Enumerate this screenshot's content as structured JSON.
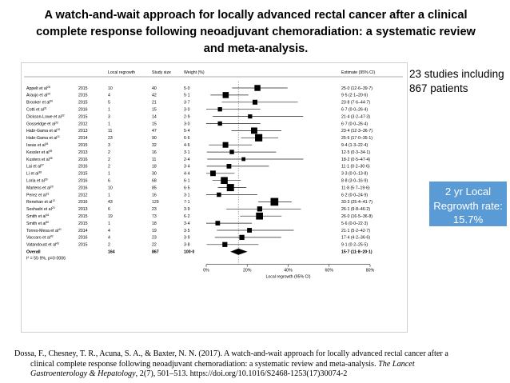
{
  "slide": {
    "title": "A watch-and-wait approach for locally advanced rectal cancer after a clinical complete response following neoadjuvant chemoradiation: a systematic review and meta-analysis.",
    "side_note": "23 studies including 867 patients",
    "stat_box": "2 yr Local Regrowth rate: 15.7%",
    "citation": {
      "line1": "Dossa, F., Chesney, T. R., Acuna, S. A., & Baxter, N. N. (2017). A watch-and-wait approach for locally advanced rectal cancer after a",
      "line2": "clinical complete response following neoadjuvant chemoradiation: a systematic review and meta-analysis.",
      "journal": "The Lancet",
      "line3_journal": "Gastroenterology & Hepatology",
      "line3_rest": ", 2(7), 501–513. https://doi.org/10.1016/S2468-1253(17)30074-2"
    }
  },
  "chart_data": {
    "type": "forest",
    "columns": [
      "Local regrowth",
      "Study size",
      "Weight (%)",
      "Estimate (95% CI)"
    ],
    "xlabel": "Local regrowth (95% CI)",
    "xticks": [
      "0%",
      "20%",
      "40%",
      "60%",
      "80%"
    ],
    "xlim": [
      0,
      80
    ],
    "heterogeneity": "I² = 55·9%, p=0·0006",
    "studies": [
      {
        "study": "Appelt et al",
        "ref": "28",
        "year": "2015",
        "regrowth": "10",
        "size": "40",
        "weight": "5·0",
        "est_text": "25·0 (12·6–39·7)",
        "est": 25.0,
        "lo": 12.6,
        "hi": 39.7
      },
      {
        "study": "Araujo et al",
        "ref": "29",
        "year": "2015",
        "regrowth": "4",
        "size": "42",
        "weight": "5·1",
        "est_text": "9·5 (2·1–20·6)",
        "est": 9.5,
        "lo": 2.1,
        "hi": 20.6
      },
      {
        "study": "Brooker et al",
        "ref": "30",
        "year": "2015",
        "regrowth": "5",
        "size": "21",
        "weight": "3·7",
        "est_text": "23·8 (7·6–44·7)",
        "est": 23.8,
        "lo": 7.6,
        "hi": 44.7
      },
      {
        "study": "Cotti et al",
        "ref": "31",
        "year": "2016",
        "regrowth": "1",
        "size": "15",
        "weight": "3·0",
        "est_text": "6·7 (0·0–26·4)",
        "est": 6.7,
        "lo": 0.0,
        "hi": 26.4
      },
      {
        "study": "Dickson-Lowe et al",
        "ref": "32",
        "year": "2015",
        "regrowth": "3",
        "size": "14",
        "weight": "2·9",
        "est_text": "21·4 (3·2–47·3)",
        "est": 21.4,
        "lo": 3.2,
        "hi": 47.3
      },
      {
        "study": "Gosseldge et al",
        "ref": "33",
        "year": "2012",
        "regrowth": "1",
        "size": "15",
        "weight": "3·0",
        "est_text": "6·7 (0·0–26·4)",
        "est": 6.7,
        "lo": 0.0,
        "hi": 26.4
      },
      {
        "study": "Habr-Gama et al",
        "ref": "10",
        "year": "2013",
        "regrowth": "11",
        "size": "47",
        "weight": "5·4",
        "est_text": "23·4 (12·3–36·7)",
        "est": 23.4,
        "lo": 12.3,
        "hi": 36.7
      },
      {
        "study": "Habr-Gama et al",
        "ref": "11",
        "year": "2014",
        "regrowth": "23",
        "size": "90",
        "weight": "6·6",
        "est_text": "25·6 (17·0–35·1)",
        "est": 25.6,
        "lo": 17.0,
        "hi": 35.1
      },
      {
        "study": "Iseas et al",
        "ref": "34",
        "year": "2015",
        "regrowth": "3",
        "size": "32",
        "weight": "4·6",
        "est_text": "9·4 (1·3–22·4)",
        "est": 9.4,
        "lo": 1.3,
        "hi": 22.4
      },
      {
        "study": "Kessler et al",
        "ref": "35",
        "year": "2013",
        "regrowth": "2",
        "size": "16",
        "weight": "3·1",
        "est_text": "12·5 (0·3–34·1)",
        "est": 12.5,
        "lo": 0.3,
        "hi": 34.1
      },
      {
        "study": "Kusters et al",
        "ref": "36",
        "year": "2016",
        "regrowth": "2",
        "size": "11",
        "weight": "2·4",
        "est_text": "18·2 (0·5–47·4)",
        "est": 18.2,
        "lo": 0.5,
        "hi": 47.4
      },
      {
        "study": "Lai et al",
        "ref": "37",
        "year": "2016",
        "regrowth": "2",
        "size": "18",
        "weight": "3·4",
        "est_text": "11·1 (0·2–30·6)",
        "est": 11.1,
        "lo": 0.2,
        "hi": 30.6
      },
      {
        "study": "Li et al",
        "ref": "38",
        "year": "2015",
        "regrowth": "1",
        "size": "30",
        "weight": "4·4",
        "est_text": "3·3 (0·0–13·8)",
        "est": 3.3,
        "lo": 0.0,
        "hi": 13.8
      },
      {
        "study": "Loria et al",
        "ref": "39",
        "year": "2016",
        "regrowth": "6",
        "size": "68",
        "weight": "6·1",
        "est_text": "8·8 (3·0–16·9)",
        "est": 8.8,
        "lo": 3.0,
        "hi": 16.9
      },
      {
        "study": "Martens et al",
        "ref": "20",
        "year": "2016",
        "regrowth": "10",
        "size": "85",
        "weight": "6·5",
        "est_text": "11·8 (5·7–19·6)",
        "est": 11.8,
        "lo": 5.7,
        "hi": 19.6
      },
      {
        "study": "Perez et al",
        "ref": "21",
        "year": "2012",
        "regrowth": "1",
        "size": "16",
        "weight": "3·1",
        "est_text": "6·2 (0·0–24·9)",
        "est": 6.2,
        "lo": 0.0,
        "hi": 24.9
      },
      {
        "study": "Renehan et al",
        "ref": "12",
        "year": "2016",
        "regrowth": "43",
        "size": "129",
        "weight": "7·1",
        "est_text": "33·3 (25·4–41·7)",
        "est": 33.3,
        "lo": 25.4,
        "hi": 41.7
      },
      {
        "study": "Seshadri et al",
        "ref": "23",
        "year": "2013",
        "regrowth": "6",
        "size": "23",
        "weight": "3·9",
        "est_text": "26·1 (9·8–46·2)",
        "est": 26.1,
        "lo": 9.8,
        "hi": 46.2
      },
      {
        "study": "Smith et al",
        "ref": "16",
        "year": "2015",
        "regrowth": "19",
        "size": "73",
        "weight": "6·2",
        "est_text": "26·0 (16·5–36·8)",
        "est": 26.0,
        "lo": 16.5,
        "hi": 36.8
      },
      {
        "study": "Smith et al",
        "ref": "40",
        "year": "2015",
        "regrowth": "1",
        "size": "18",
        "weight": "3·4",
        "est_text": "5·6 (0·0–22·3)",
        "est": 5.6,
        "lo": 0.0,
        "hi": 22.3
      },
      {
        "study": "Torres-Mesa et al",
        "ref": "41",
        "year": "2014",
        "regrowth": "4",
        "size": "19",
        "weight": "3·5",
        "est_text": "21·1 (5·2–42·7)",
        "est": 21.1,
        "lo": 5.2,
        "hi": 42.7
      },
      {
        "study": "Vaccaro et al",
        "ref": "42",
        "year": "2016",
        "regrowth": "4",
        "size": "23",
        "weight": "3·9",
        "est_text": "17·4 (4·2–36·6)",
        "est": 17.4,
        "lo": 4.2,
        "hi": 36.6
      },
      {
        "study": "Vatandoust et al",
        "ref": "43",
        "year": "2015",
        "regrowth": "2",
        "size": "22",
        "weight": "3·8",
        "est_text": "9·1 (0·2–25·5)",
        "est": 9.1,
        "lo": 0.2,
        "hi": 25.5
      }
    ],
    "overall": {
      "label": "Overall",
      "regrowth": "164",
      "size": "867",
      "weight": "100·0",
      "est_text": "15·7 (11·8–20·1)",
      "est": 15.7,
      "lo": 11.8,
      "hi": 20.1
    }
  }
}
